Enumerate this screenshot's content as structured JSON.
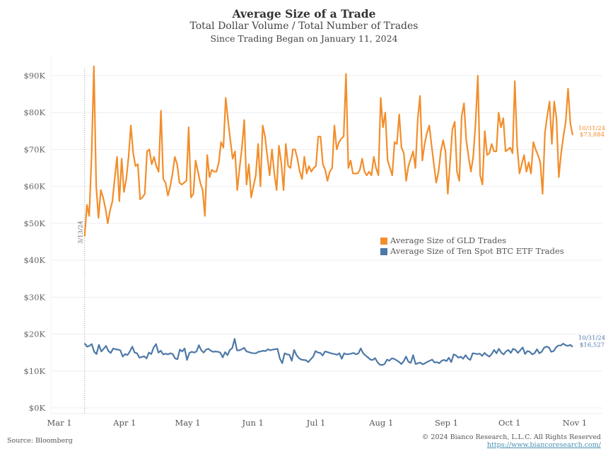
{
  "chart_data": {
    "type": "line",
    "title": "Average Size of a Trade",
    "subtitle": "Total Dollar Volume / Total Number of Trades",
    "subtitle2": "Since Trading Began on January 11, 2024",
    "xlabel": "",
    "ylabel": "",
    "ylim": [
      0,
      95000
    ],
    "xlim_dates": [
      "2024-02-24",
      "2024-11-09"
    ],
    "grid": true,
    "legend_position": "center-right",
    "y_ticks": [
      {
        "value": 0,
        "label": "$0K"
      },
      {
        "value": 10000,
        "label": "$10K"
      },
      {
        "value": 20000,
        "label": "$20K"
      },
      {
        "value": 30000,
        "label": "$30K"
      },
      {
        "value": 40000,
        "label": "$40K"
      },
      {
        "value": 50000,
        "label": "$50K"
      },
      {
        "value": 60000,
        "label": "$60K"
      },
      {
        "value": 70000,
        "label": "$70K"
      },
      {
        "value": 80000,
        "label": "$80K"
      },
      {
        "value": 90000,
        "label": "$90K"
      }
    ],
    "x_ticks": [
      {
        "date": "2024-03-01",
        "label": "Mar 1"
      },
      {
        "date": "2024-04-01",
        "label": "Apr 1"
      },
      {
        "date": "2024-05-01",
        "label": "May 1"
      },
      {
        "date": "2024-06-01",
        "label": "Jun 1"
      },
      {
        "date": "2024-07-01",
        "label": "Jul 1"
      },
      {
        "date": "2024-08-01",
        "label": "Aug 1"
      },
      {
        "date": "2024-09-01",
        "label": "Sep 1"
      },
      {
        "date": "2024-10-01",
        "label": "Oct 1"
      },
      {
        "date": "2024-11-01",
        "label": "Nov 1"
      }
    ],
    "annotation": {
      "date": "2024-03-13",
      "label": "3/13/24",
      "style": "dotted-vertical-line"
    },
    "start_date": "2024-03-13",
    "series": [
      {
        "name": "Average Size of GLD Trades",
        "color": "#F28E2B",
        "end_label_date": "10/31/24",
        "end_label_value": "$73,884",
        "values": [
          46500,
          55000,
          52000,
          68000,
          92500,
          60000,
          51500,
          59000,
          57000,
          54000,
          50000,
          53500,
          56000,
          62000,
          68000,
          56000,
          67500,
          58500,
          62000,
          68000,
          76500,
          69000,
          65500,
          66000,
          56500,
          57000,
          58000,
          69500,
          70000,
          66000,
          68000,
          65500,
          64000,
          80500,
          62000,
          61000,
          57500,
          60000,
          63500,
          68000,
          66000,
          61000,
          60500,
          61000,
          61500,
          76000,
          57000,
          58000,
          67000,
          64000,
          61000,
          59000,
          52000,
          68500,
          62500,
          64500,
          64000,
          64000,
          66500,
          72000,
          70500,
          84000,
          78000,
          72500,
          67500,
          69500,
          59000,
          65000,
          70500,
          78000,
          60500,
          66000,
          57000,
          60000,
          63000,
          71500,
          60000,
          76500,
          73500,
          68000,
          63000,
          70000,
          63500,
          59000,
          71000,
          66500,
          59000,
          71500,
          65500,
          65000,
          70000,
          70000,
          67500,
          64000,
          62000,
          68000,
          63500,
          65500,
          64000,
          65000,
          65500,
          73500,
          73500,
          66000,
          64500,
          61500,
          64000,
          65000,
          76500,
          70000,
          72000,
          73000,
          73500,
          90500,
          65000,
          67000,
          63500,
          63500,
          63500,
          64500,
          67500,
          64000,
          63000,
          64000,
          63000,
          68000,
          65000,
          63000,
          84000,
          76000,
          80000,
          67000,
          65000,
          63000,
          72000,
          71500,
          79500,
          70500,
          69000,
          61500,
          65500,
          67500,
          69500,
          65000,
          78000,
          84500,
          67000,
          71500,
          74500,
          76500,
          71000,
          66000,
          61000,
          64000,
          69500,
          72500,
          69500,
          58000,
          66500,
          75500,
          77500,
          64000,
          61500,
          79000,
          82500,
          72500,
          68000,
          64000,
          68000,
          77000,
          90000,
          63000,
          60500,
          75000,
          68500,
          69000,
          71500,
          69500,
          69500,
          80000,
          76000,
          78500,
          69500,
          70000,
          70500,
          69000,
          88500,
          71000,
          63500,
          66000,
          68500,
          64000,
          66500,
          63500,
          72000,
          70000,
          68500,
          66500,
          58000,
          74500,
          79000,
          83000,
          71500,
          83000,
          78500,
          62500,
          69000,
          73500,
          77500,
          86500,
          77000,
          73884
        ]
      },
      {
        "name": "Average Size of Ten Spot BTC ETF Trades",
        "color": "#4E79A7",
        "end_label_date": "10/31/24",
        "end_label_value": "$16,527",
        "values": [
          17500,
          16600,
          16800,
          17300,
          15200,
          14600,
          17100,
          15300,
          16000,
          16800,
          15400,
          14900,
          16100,
          15900,
          15800,
          15600,
          13900,
          14600,
          14300,
          15300,
          16600,
          15000,
          14800,
          13600,
          13800,
          14000,
          13400,
          15000,
          14600,
          16400,
          17300,
          15000,
          15500,
          14500,
          14700,
          14500,
          14800,
          14600,
          13400,
          13200,
          15800,
          15300,
          16100,
          13000,
          14900,
          15200,
          15000,
          15300,
          17000,
          15600,
          15000,
          15800,
          16000,
          15500,
          15200,
          15300,
          15200,
          15000,
          13700,
          15100,
          14300,
          15700,
          16200,
          18700,
          15600,
          15600,
          15900,
          16300,
          15300,
          15100,
          14900,
          14800,
          14800,
          15200,
          15300,
          15500,
          15400,
          15900,
          15600,
          15800,
          15900,
          16000,
          13400,
          12100,
          14800,
          14500,
          14400,
          12800,
          15700,
          14300,
          13500,
          13100,
          13000,
          12900,
          12400,
          13200,
          13900,
          15400,
          15000,
          14900,
          14200,
          15300,
          15100,
          14900,
          14700,
          14600,
          14400,
          14800,
          13300,
          14800,
          14500,
          14600,
          14700,
          14900,
          14500,
          14800,
          16100,
          14800,
          14200,
          13700,
          13100,
          13000,
          13500,
          12400,
          11700,
          11600,
          11900,
          13100,
          12800,
          13400,
          13300,
          12900,
          12500,
          11900,
          12600,
          13900,
          12500,
          12200,
          14300,
          11900,
          12100,
          12300,
          11800,
          12100,
          12500,
          12800,
          13100,
          12300,
          12400,
          12100,
          12800,
          13000,
          12700,
          13600,
          12400,
          14500,
          14200,
          13600,
          13900,
          13300,
          14300,
          13400,
          13000,
          14800,
          14700,
          14600,
          14700,
          14100,
          14900,
          14300,
          13900,
          14600,
          15700,
          14800,
          16000,
          15000,
          14500,
          15300,
          15700,
          14900,
          16000,
          15700,
          14900,
          15600,
          16400,
          14600,
          15400,
          15200,
          14500,
          14800,
          15900,
          14800,
          15200,
          16300,
          16600,
          16400,
          15200,
          15400,
          16400,
          16900,
          16900,
          17400,
          17000,
          16800,
          17100,
          16527
        ]
      }
    ]
  },
  "legend": {
    "items": [
      {
        "label": "Average Size of GLD Trades",
        "color": "#F28E2B"
      },
      {
        "label": "Average Size of Ten Spot BTC ETF Trades",
        "color": "#4E79A7"
      }
    ]
  },
  "footer": {
    "source": "Source: Bloomberg",
    "copyright": "© 2024 Bianco Research, L.L.C. All Rights Reserved",
    "url": "https://www.biancoresearch.com/"
  }
}
